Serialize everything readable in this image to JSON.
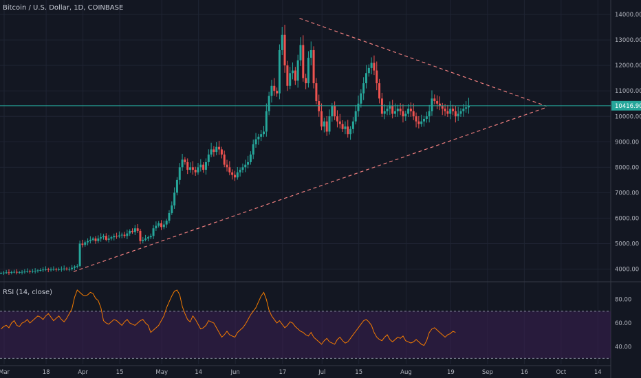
{
  "header": {
    "title": "Bitcoin / U.S. Dollar, 1D, COINBASE"
  },
  "rsi_panel": {
    "label": "RSI (14, close)"
  },
  "colors": {
    "background": "#131722",
    "grid": "#1f2433",
    "up": "#26a69a",
    "down": "#ef5350",
    "trendline": "#ef7f7f",
    "rsi_line": "#f57c00",
    "rsi_band": "#3a1f52",
    "price_line": "#26a69a",
    "axis_text": "#b2b5be"
  },
  "chart_data": [
    {
      "type": "candlestick",
      "x_ticks": [
        "Mar",
        "18",
        "Apr",
        "15",
        "May",
        "14",
        "Jun",
        "17",
        "Jul",
        "15",
        "Aug",
        "19",
        "Sep",
        "16",
        "Oct",
        "14"
      ],
      "y_ticks": [
        4000,
        5000,
        6000,
        7000,
        8000,
        9000,
        10000,
        11000,
        12000,
        13000,
        14000
      ],
      "y_tick_labels": [
        "4000.00",
        "5000.00",
        "6000.00",
        "7000.00",
        "8000.00",
        "9000.00",
        "10000.00",
        "11000.00",
        "12000.00",
        "13000.00",
        "14000.00"
      ],
      "ylim": [
        3500,
        14300
      ],
      "current_price": 10416.9,
      "current_price_label": "10416.90",
      "close_series_by_day_from_Mar_4": [
        3850,
        3860,
        3870,
        3860,
        3880,
        3890,
        3870,
        3880,
        3890,
        3900,
        3910,
        3900,
        3920,
        3930,
        3950,
        3960,
        3980,
        3990,
        3970,
        3980,
        4000,
        3980,
        3990,
        4010,
        4020,
        3990,
        4000,
        4050,
        4100,
        4120,
        5000,
        4950,
        5050,
        5100,
        5150,
        5200,
        5100,
        5200,
        5250,
        5300,
        5150,
        5200,
        5250,
        5300,
        5280,
        5320,
        5350,
        5300,
        5400,
        5500,
        5450,
        5600,
        5500,
        5100,
        5150,
        5200,
        5250,
        5300,
        5600,
        5700,
        5800,
        5650,
        5750,
        5900,
        6200,
        6500,
        7000,
        7500,
        8000,
        8300,
        8200,
        7900,
        8000,
        7900,
        7800,
        8000,
        8100,
        7900,
        8200,
        8500,
        8700,
        8600,
        8800,
        8700,
        8500,
        8100,
        8000,
        7800,
        7700,
        7600,
        7800,
        7900,
        8000,
        8100,
        8200,
        8500,
        8900,
        9100,
        9200,
        9300,
        9400,
        10200,
        10800,
        11200,
        11000,
        10900,
        12600,
        13200,
        12000,
        11200,
        11700,
        11800,
        11400,
        12200,
        12800,
        11500,
        11300,
        12300,
        12600,
        11300,
        10600,
        10200,
        9600,
        9800,
        9400,
        10000,
        10400,
        10000,
        9800,
        9700,
        9500,
        9600,
        9300,
        9500,
        9800,
        10200,
        10500,
        10900,
        11300,
        11700,
        11900,
        12100,
        11800,
        11300,
        10700,
        10100,
        10200,
        10300,
        10400,
        10100,
        10200,
        10300,
        10200,
        10000,
        10100,
        10300,
        10200,
        10000,
        9800,
        9700,
        9800,
        9900,
        10000,
        10200,
        10700,
        10600,
        10500,
        10400,
        10300,
        10200,
        10100,
        10300,
        10200,
        10000,
        10100,
        10200,
        10300,
        10350,
        10416.9
      ],
      "trendlines": [
        {
          "from": [
            "Apr 1",
            3900
          ],
          "to": [
            "Sep 28",
            10350
          ]
        },
        {
          "from": [
            "Jun 26",
            13850
          ],
          "to": [
            "Sep 28",
            10400
          ]
        }
      ]
    },
    {
      "type": "line",
      "series": [
        {
          "name": "RSI (14, close)",
          "values": [
            55,
            57,
            58,
            56,
            60,
            62,
            58,
            57,
            60,
            61,
            63,
            60,
            62,
            64,
            66,
            65,
            63,
            66,
            68,
            65,
            62,
            64,
            66,
            63,
            61,
            64,
            68,
            72,
            82,
            88,
            86,
            84,
            83,
            84,
            86,
            85,
            81,
            79,
            73,
            62,
            60,
            59,
            61,
            63,
            62,
            60,
            58,
            61,
            63,
            60,
            59,
            58,
            60,
            62,
            63,
            60,
            58,
            52,
            54,
            56,
            58,
            62,
            66,
            73,
            78,
            83,
            87,
            88,
            84,
            74,
            68,
            63,
            61,
            66,
            63,
            59,
            55,
            56,
            58,
            62,
            61,
            60,
            56,
            52,
            48,
            50,
            53,
            50,
            49,
            48,
            52,
            54,
            56,
            59,
            63,
            67,
            70,
            73,
            78,
            83,
            86,
            80,
            71,
            66,
            63,
            60,
            62,
            59,
            56,
            58,
            61,
            60,
            57,
            55,
            53,
            52,
            50,
            49,
            52,
            48,
            46,
            44,
            42,
            45,
            47,
            44,
            43,
            42,
            46,
            48,
            45,
            43,
            44,
            47,
            50,
            53,
            56,
            59,
            62,
            63,
            61,
            58,
            52,
            48,
            46,
            45,
            48,
            50,
            46,
            44,
            46,
            48,
            47,
            49,
            45,
            44,
            43,
            44,
            46,
            44,
            42,
            41,
            45,
            52,
            55,
            56,
            54,
            52,
            50,
            48,
            50,
            51,
            53,
            52
          ]
        }
      ],
      "y_ticks": [
        40,
        60,
        80
      ],
      "y_tick_labels": [
        "40.00",
        "60.00",
        "80.00"
      ],
      "bands": [
        30,
        70
      ],
      "ylim": [
        25,
        95
      ]
    }
  ]
}
